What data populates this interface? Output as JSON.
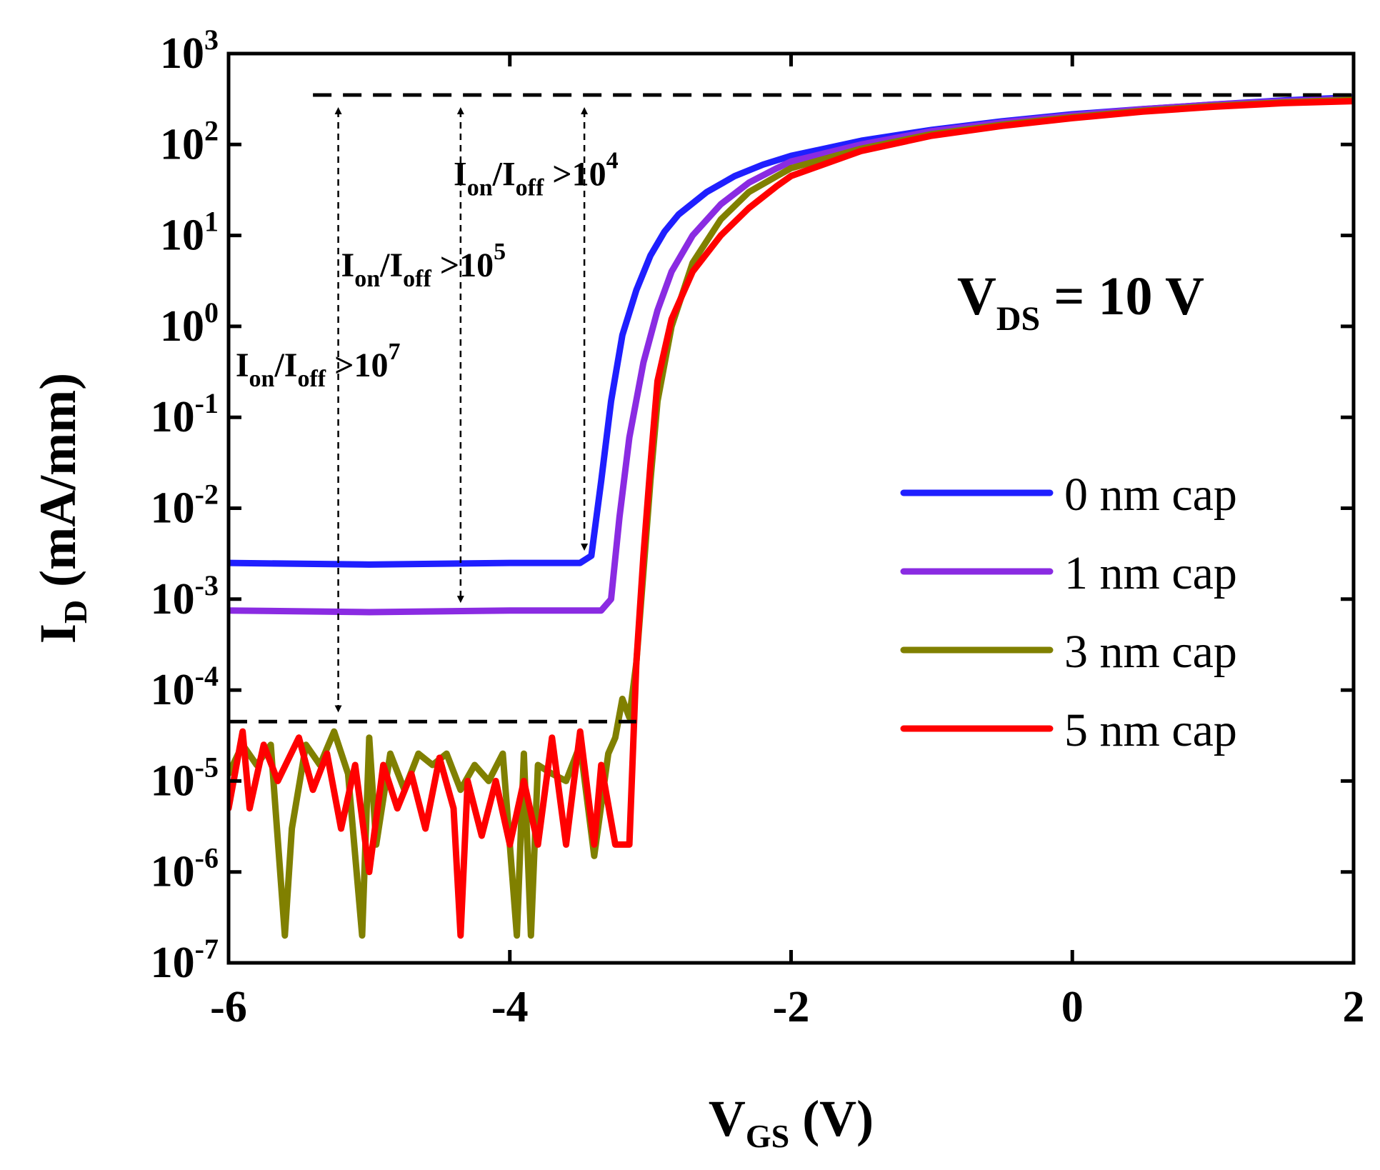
{
  "chart_data": {
    "type": "line",
    "title": "",
    "xlabel": {
      "main": "V",
      "sub": "GS",
      "rest": " (V)"
    },
    "ylabel": {
      "main": "I",
      "sub": "D",
      "rest": " (mA/mm)"
    },
    "xlim": [
      -6,
      2
    ],
    "ylim_log10": [
      -7,
      3
    ],
    "y_scale": "log",
    "x_ticks": [
      "-6",
      "-4",
      "-2",
      "0",
      "2"
    ],
    "y_ticks": [
      {
        "base": "10",
        "exp": "3"
      },
      {
        "base": "10",
        "exp": "2"
      },
      {
        "base": "10",
        "exp": "1"
      },
      {
        "base": "10",
        "exp": "0"
      },
      {
        "base": "10",
        "exp": "-1"
      },
      {
        "base": "10",
        "exp": "-2"
      },
      {
        "base": "10",
        "exp": "-3"
      },
      {
        "base": "10",
        "exp": "-4"
      },
      {
        "base": "10",
        "exp": "-5"
      },
      {
        "base": "10",
        "exp": "-6"
      },
      {
        "base": "10",
        "exp": "-7"
      }
    ],
    "legend_position": "right",
    "condition": {
      "main": "V",
      "sub": "DS",
      "rest": " = 10 V"
    },
    "series": [
      {
        "name": "0 nm cap",
        "color": "#1f1fff",
        "x": [
          -6.0,
          -5.0,
          -4.0,
          -3.5,
          -3.42,
          -3.35,
          -3.28,
          -3.2,
          -3.1,
          -3.0,
          -2.9,
          -2.8,
          -2.6,
          -2.4,
          -2.2,
          -2.0,
          -1.5,
          -1.0,
          -0.5,
          0.0,
          0.5,
          1.0,
          1.5,
          2.0
        ],
        "y": [
          0.0025,
          0.0024,
          0.0025,
          0.0025,
          0.003,
          0.02,
          0.15,
          0.8,
          2.5,
          6,
          11,
          17,
          30,
          45,
          60,
          75,
          110,
          145,
          180,
          215,
          245,
          275,
          305,
          330
        ]
      },
      {
        "name": "1 nm cap",
        "color": "#8a2be2",
        "x": [
          -6.0,
          -5.0,
          -4.0,
          -3.35,
          -3.28,
          -3.22,
          -3.15,
          -3.05,
          -2.95,
          -2.85,
          -2.7,
          -2.5,
          -2.3,
          -2.1,
          -2.0,
          -1.5,
          -1.0,
          -0.5,
          0.0,
          0.5,
          1.0,
          1.5,
          2.0
        ],
        "y": [
          0.00075,
          0.00072,
          0.00075,
          0.00075,
          0.001,
          0.008,
          0.06,
          0.4,
          1.5,
          4,
          10,
          22,
          38,
          55,
          65,
          100,
          140,
          175,
          210,
          245,
          275,
          300,
          320
        ]
      },
      {
        "name": "3 nm cap",
        "color": "#808000",
        "x": [
          -6.0,
          -5.9,
          -5.8,
          -5.7,
          -5.6,
          -5.55,
          -5.45,
          -5.35,
          -5.25,
          -5.15,
          -5.05,
          -5.0,
          -4.95,
          -4.85,
          -4.75,
          -4.65,
          -4.55,
          -4.45,
          -4.35,
          -4.25,
          -4.15,
          -4.05,
          -3.95,
          -3.9,
          -3.85,
          -3.8,
          -3.7,
          -3.6,
          -3.5,
          -3.4,
          -3.3,
          -3.25,
          -3.2,
          -3.15,
          -3.1,
          -3.05,
          -3.0,
          -2.95,
          -2.85,
          -2.7,
          -2.5,
          -2.3,
          -2.1,
          -2.0,
          -1.5,
          -1.0,
          -0.5,
          0.0,
          0.5,
          1.0,
          1.5,
          2.0
        ],
        "y": [
          1.2e-05,
          2.5e-05,
          1.5e-05,
          2.5e-05,
          2e-07,
          3e-06,
          2.5e-05,
          1.5e-05,
          3.5e-05,
          1.2e-05,
          2e-07,
          3e-05,
          2e-06,
          2e-05,
          8e-06,
          2e-05,
          1.5e-05,
          2e-05,
          8e-06,
          1.5e-05,
          1e-05,
          2e-05,
          2e-07,
          2e-05,
          2e-07,
          1.5e-05,
          1.2e-05,
          1e-05,
          2.5e-05,
          1.5e-06,
          2e-05,
          3e-05,
          8e-05,
          5e-05,
          0.0002,
          0.002,
          0.02,
          0.15,
          1.0,
          5,
          15,
          30,
          45,
          55,
          90,
          130,
          165,
          200,
          235,
          265,
          290,
          310
        ]
      },
      {
        "name": "5 nm cap",
        "color": "#ff0000",
        "x": [
          -6.0,
          -5.9,
          -5.85,
          -5.75,
          -5.65,
          -5.5,
          -5.4,
          -5.3,
          -5.2,
          -5.1,
          -5.0,
          -4.9,
          -4.8,
          -4.7,
          -4.6,
          -4.5,
          -4.4,
          -4.35,
          -4.3,
          -4.2,
          -4.1,
          -4.0,
          -3.9,
          -3.8,
          -3.7,
          -3.6,
          -3.5,
          -3.4,
          -3.35,
          -3.25,
          -3.15,
          -3.1,
          -3.05,
          -3.0,
          -2.95,
          -2.85,
          -2.7,
          -2.5,
          -2.3,
          -2.1,
          -2.0,
          -1.5,
          -1.0,
          -0.5,
          0.0,
          0.5,
          1.0,
          1.5,
          2.0
        ],
        "y": [
          5e-06,
          3.5e-05,
          5e-06,
          2.5e-05,
          1e-05,
          3e-05,
          8e-06,
          2e-05,
          3e-06,
          1.5e-05,
          1e-06,
          1.5e-05,
          5e-06,
          1.2e-05,
          3e-06,
          1.8e-05,
          5e-06,
          2e-07,
          1e-05,
          2.5e-06,
          1e-05,
          2e-06,
          1e-05,
          2e-06,
          3e-05,
          2e-06,
          3.5e-05,
          2e-06,
          1.5e-05,
          2e-06,
          2e-06,
          0.0002,
          0.003,
          0.03,
          0.25,
          1.2,
          4,
          10,
          20,
          35,
          45,
          85,
          125,
          160,
          195,
          230,
          260,
          285,
          300
        ]
      }
    ],
    "reference_lines": [
      {
        "x": [
          -5.4,
          2.0
        ],
        "y": 350,
        "style": "dashed"
      },
      {
        "x": [
          -6.0,
          -3.1
        ],
        "y": 4.5e-05,
        "style": "dashed"
      }
    ],
    "annotations": [
      {
        "prefix": "I",
        "sub1": "on",
        "mid": "/I",
        "sub2": "off",
        "suffix": " >10",
        "exp": "4",
        "x": -4.4,
        "y_log10": 1.55,
        "arrow_x": -3.47,
        "arrow_to": 0.003
      },
      {
        "prefix": "I",
        "sub1": "on",
        "mid": "/I",
        "sub2": "off",
        "suffix": " >10",
        "exp": "5",
        "x": -5.2,
        "y_log10": 0.55,
        "arrow_x": -4.35,
        "arrow_to": 0.0008
      },
      {
        "prefix": "I",
        "sub1": "on",
        "mid": "/I",
        "sub2": "off",
        "suffix": " >10",
        "exp": "7",
        "x": -5.95,
        "y_log10": -0.55,
        "arrow_x": -5.22,
        "arrow_to": 5e-05
      }
    ]
  }
}
